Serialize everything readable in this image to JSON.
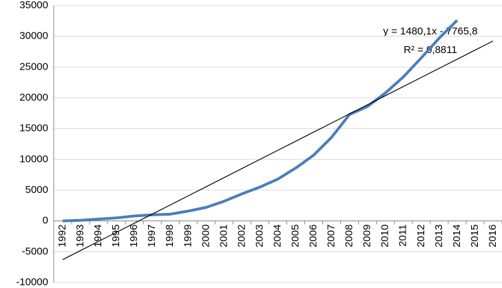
{
  "chart_data": {
    "type": "line",
    "categories": [
      "1992",
      "1993",
      "1994",
      "1995",
      "1996",
      "1997",
      "1998",
      "1999",
      "2000",
      "2001",
      "2002",
      "2003",
      "2004",
      "2005",
      "2006",
      "2007",
      "2008",
      "2009",
      "2010",
      "2011",
      "2012",
      "2013",
      "2014",
      "2015",
      "2016"
    ],
    "series": [
      {
        "color": "#4a7ebb",
        "values": [
          0,
          100,
          300,
          500,
          800,
          1000,
          1100,
          1600,
          2200,
          3200,
          4400,
          5500,
          6800,
          8600,
          10700,
          13600,
          17300,
          18600,
          20800,
          23400,
          26500,
          29700,
          32600,
          null,
          null
        ]
      },
      {
        "color": "#000000",
        "values": [
          -6285.7,
          -4805.6,
          -3325.5,
          -1845.4,
          -365.3,
          1114.8,
          2594.9,
          4075,
          5555.1,
          7035.2,
          8515.3,
          9995.4,
          11475.5,
          12955.6,
          14435.7,
          15915.8,
          17395.9,
          18876,
          20356.1,
          21836.2,
          23316.3,
          24796.4,
          26276.5,
          27756.6,
          29236.7
        ]
      }
    ],
    "annotations": [
      "y = 1480,1x - 7765,8",
      "R² = 0,8811"
    ],
    "ylim": [
      -10000,
      35000
    ],
    "yticks": [
      -10000,
      -5000,
      0,
      5000,
      10000,
      15000,
      20000,
      25000,
      30000,
      35000
    ],
    "grid": true
  }
}
